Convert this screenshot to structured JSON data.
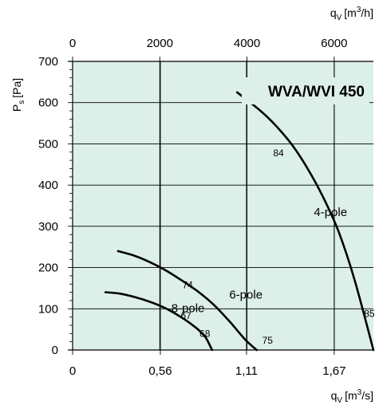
{
  "chart_data": {
    "type": "line",
    "title": "WVA/WVI 450",
    "bottom_axis": {
      "label_main": "q",
      "label_sub": "V",
      "label_unit": "[m",
      "label_exp": "3",
      "label_tail": "/s]",
      "range": [
        0,
        1.92
      ],
      "ticks": [
        {
          "value": 0,
          "label": "0"
        },
        {
          "value": 0.56,
          "label": "0,56"
        },
        {
          "value": 1.11,
          "label": "1,11"
        },
        {
          "value": 1.67,
          "label": "1,67"
        }
      ]
    },
    "top_axis": {
      "label_main": "q",
      "label_sub": "V",
      "label_unit": "[m",
      "label_exp": "3",
      "label_tail": "/h]",
      "range": [
        0,
        6900
      ],
      "ticks": [
        {
          "value": 0,
          "label": "0"
        },
        {
          "value": 2000,
          "label": "2000"
        },
        {
          "value": 4000,
          "label": "4000"
        },
        {
          "value": 6000,
          "label": "6000"
        }
      ]
    },
    "y_axis": {
      "label_main": "P",
      "label_sub": "s",
      "label_unit": "[Pa]",
      "range": [
        0,
        700
      ],
      "ticks": [
        0,
        100,
        200,
        300,
        400,
        500,
        600,
        700
      ]
    },
    "grid": true,
    "colors": {
      "plot_bg": "#dcefe8",
      "grid": "#000000",
      "curve": "#000000"
    },
    "series": [
      {
        "name": "4-pole",
        "x": [
          1.05,
          1.2,
          1.3,
          1.4,
          1.5,
          1.6,
          1.7,
          1.8,
          1.92
        ],
        "y": [
          625,
          580,
          543,
          498,
          440,
          370,
          285,
          170,
          0
        ]
      },
      {
        "name": "6-pole",
        "x": [
          0.29,
          0.4,
          0.5,
          0.6,
          0.7,
          0.8,
          0.9,
          1.0,
          1.1,
          1.175
        ],
        "y": [
          240,
          228,
          212,
          192,
          168,
          142,
          110,
          70,
          26,
          0
        ]
      },
      {
        "name": "8-pole",
        "x": [
          0.21,
          0.3,
          0.4,
          0.5,
          0.6,
          0.7,
          0.76,
          0.8,
          0.85,
          0.89
        ],
        "y": [
          140,
          137,
          128,
          116,
          100,
          78,
          62,
          50,
          30,
          0
        ]
      }
    ],
    "annotations": [
      {
        "text": "84",
        "x": 1.28,
        "y": 470
      },
      {
        "text": "85",
        "x": 1.86,
        "y": 80
      },
      {
        "text": "74",
        "x": 0.7,
        "y": 150
      },
      {
        "text": "75",
        "x": 1.21,
        "y": 15
      },
      {
        "text": "67",
        "x": 0.69,
        "y": 75
      },
      {
        "text": "68",
        "x": 0.81,
        "y": 32
      }
    ],
    "curve_labels": [
      {
        "text": "4-pole",
        "x": 1.54,
        "y": 325
      },
      {
        "text": "6-pole",
        "x": 1.0,
        "y": 125
      },
      {
        "text": "8-pole",
        "x": 0.63,
        "y": 92
      }
    ]
  }
}
